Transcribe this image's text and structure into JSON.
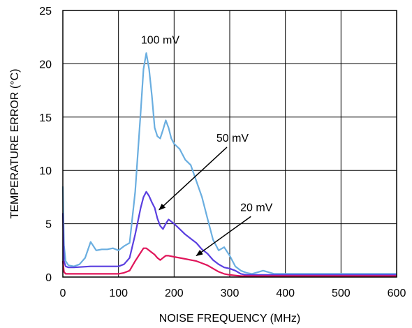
{
  "chart_data": {
    "type": "line",
    "title": "",
    "xlabel": "NOISE FREQUENCY (MHz)",
    "ylabel": "TEMPERATURE ERROR (°C)",
    "xlim": [
      0,
      600
    ],
    "ylim": [
      0,
      25
    ],
    "x_ticks": [
      0,
      100,
      200,
      300,
      400,
      500,
      600
    ],
    "y_ticks": [
      0,
      5,
      10,
      15,
      20,
      25
    ],
    "x_tick_labels": [
      "0",
      "100",
      "200",
      "300",
      "400",
      "500",
      "600"
    ],
    "y_tick_labels": [
      "0",
      "5",
      "10",
      "15",
      "20",
      "25"
    ],
    "grid": true,
    "legend": "none",
    "series": [
      {
        "name": "100 mV",
        "color": "#6aaee0",
        "x": [
          0,
          2,
          5,
          10,
          20,
          30,
          40,
          50,
          60,
          70,
          80,
          90,
          100,
          110,
          120,
          130,
          140,
          145,
          150,
          155,
          160,
          165,
          170,
          175,
          180,
          185,
          190,
          195,
          200,
          210,
          220,
          230,
          240,
          250,
          260,
          270,
          280,
          290,
          300,
          310,
          320,
          330,
          340,
          360,
          380,
          400,
          450,
          500,
          550,
          600
        ],
        "y": [
          8.5,
          3.0,
          1.5,
          1.1,
          1.0,
          1.2,
          1.8,
          3.3,
          2.5,
          2.6,
          2.6,
          2.7,
          2.5,
          2.9,
          3.2,
          8.0,
          15.5,
          19.5,
          21.0,
          19.5,
          17.0,
          14.0,
          13.2,
          13.0,
          13.8,
          14.7,
          14.0,
          13.0,
          12.5,
          12.0,
          11.0,
          10.5,
          9.0,
          7.5,
          5.5,
          3.5,
          2.5,
          2.8,
          2.0,
          1.0,
          0.6,
          0.4,
          0.3,
          0.6,
          0.3,
          0.3,
          0.3,
          0.3,
          0.3,
          0.3
        ]
      },
      {
        "name": "50 mV",
        "color": "#5a3fe0",
        "x": [
          0,
          2,
          5,
          10,
          20,
          50,
          80,
          100,
          110,
          120,
          130,
          140,
          145,
          150,
          155,
          160,
          165,
          170,
          175,
          180,
          185,
          190,
          195,
          200,
          210,
          220,
          230,
          240,
          250,
          260,
          270,
          280,
          290,
          300,
          310,
          320,
          330,
          340,
          400,
          500,
          600
        ],
        "y": [
          6.0,
          1.5,
          1.0,
          0.9,
          0.9,
          1.0,
          1.0,
          1.0,
          1.2,
          1.8,
          4.0,
          6.5,
          7.5,
          8.0,
          7.6,
          7.0,
          6.5,
          5.5,
          4.8,
          4.5,
          5.0,
          5.4,
          5.2,
          5.0,
          4.5,
          4.0,
          3.6,
          3.2,
          2.6,
          2.2,
          1.6,
          1.2,
          0.9,
          0.8,
          0.6,
          0.3,
          0.2,
          0.2,
          0.2,
          0.2,
          0.2
        ]
      },
      {
        "name": "20 mV",
        "color": "#e0155a",
        "x": [
          0,
          2,
          5,
          10,
          20,
          50,
          80,
          100,
          110,
          120,
          130,
          140,
          145,
          150,
          155,
          160,
          165,
          170,
          175,
          180,
          185,
          190,
          200,
          210,
          220,
          230,
          240,
          250,
          260,
          270,
          280,
          290,
          300,
          310,
          320,
          330,
          400,
          500,
          600
        ],
        "y": [
          1.5,
          0.5,
          0.3,
          0.3,
          0.3,
          0.3,
          0.3,
          0.3,
          0.4,
          0.6,
          1.5,
          2.3,
          2.7,
          2.7,
          2.5,
          2.3,
          2.1,
          1.8,
          1.6,
          1.8,
          2.0,
          2.0,
          1.9,
          1.8,
          1.7,
          1.6,
          1.5,
          1.3,
          1.1,
          0.8,
          0.5,
          0.3,
          0.2,
          0.15,
          0.1,
          0.1,
          0.1,
          0.1,
          0.1
        ]
      }
    ],
    "annotations": [
      {
        "text": "100 mV",
        "x": 175,
        "y": 21.9,
        "arrow": false
      },
      {
        "text": "50 mV",
        "x": 305,
        "y": 12.7,
        "arrow_to": [
          173,
          6.3
        ]
      },
      {
        "text": "20 mV",
        "x": 348,
        "y": 6.2,
        "arrow_to": [
          240,
          2.0
        ]
      }
    ]
  }
}
